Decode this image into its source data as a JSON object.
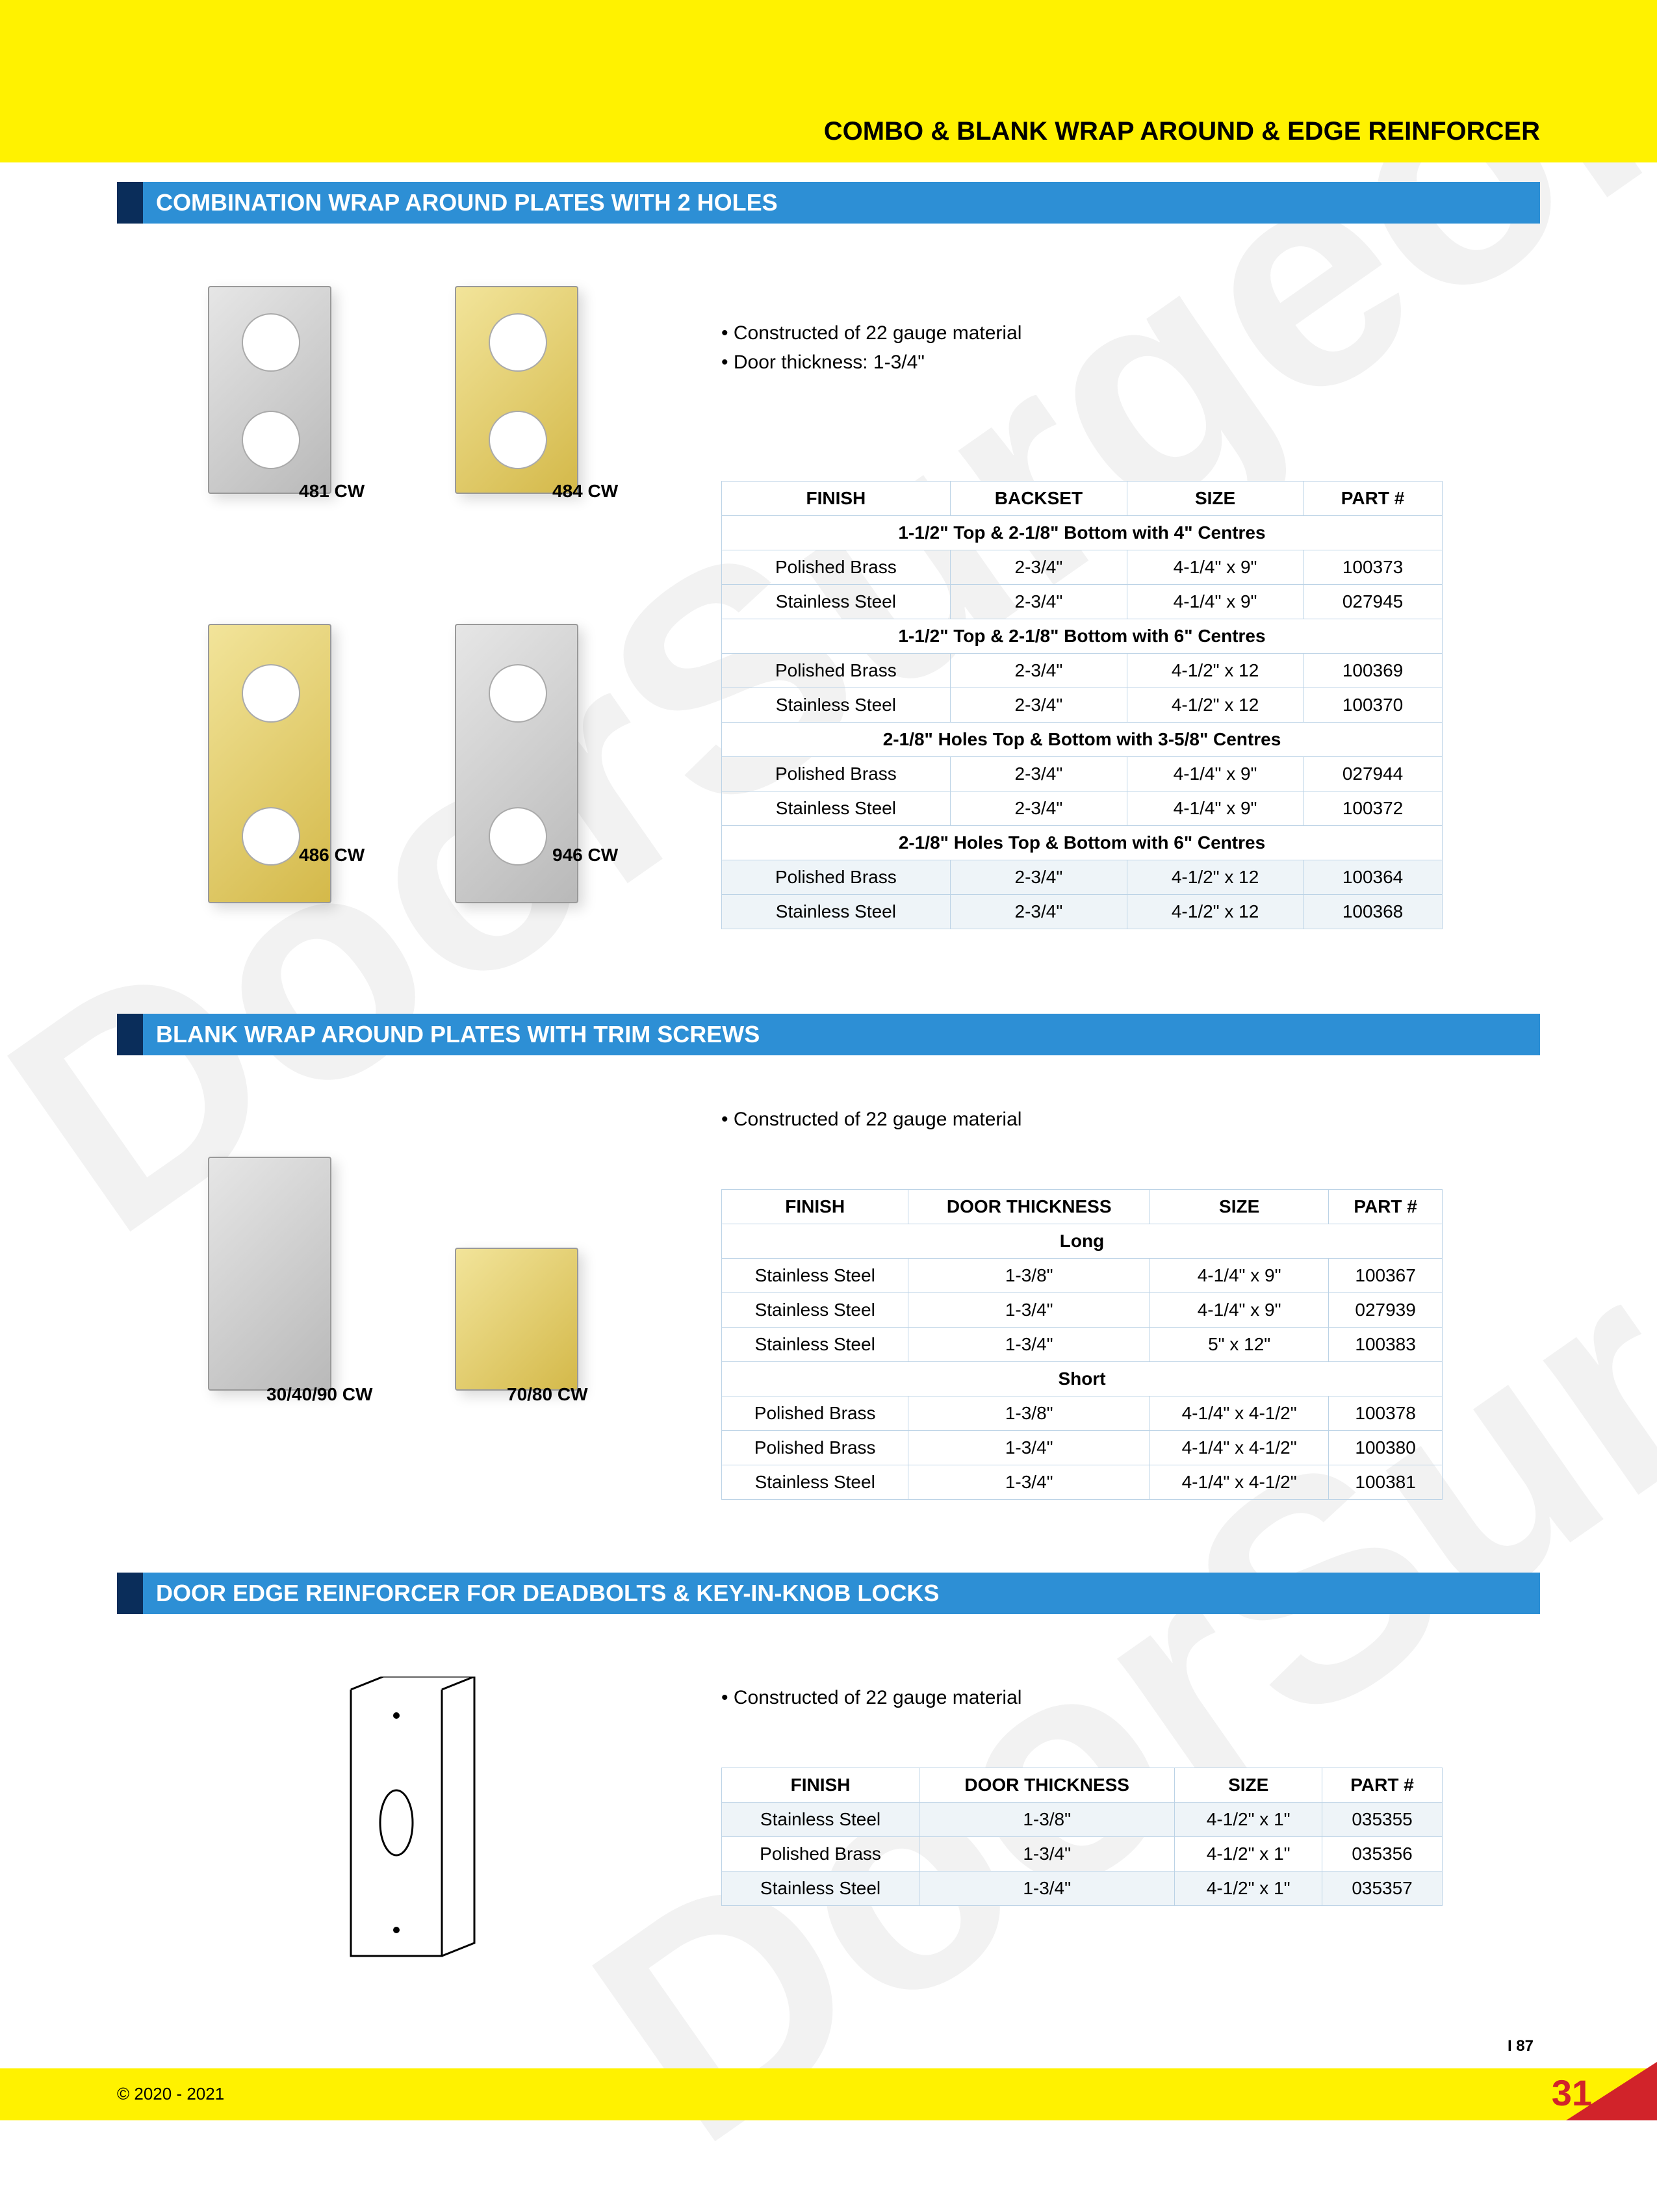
{
  "page": {
    "title": "COMBO & BLANK WRAP AROUND & EDGE REINFORCER",
    "copyright": "© 2020 - 2021",
    "page_number": "31",
    "ref_code": "I 87",
    "watermark": "DoorSurgeon.com",
    "colors": {
      "yellow": "#fff200",
      "blue_bar": "#2d8fd5",
      "dark_blue": "#0a2d5a",
      "table_border": "#bcd3e6",
      "red": "#d1232a"
    }
  },
  "section1": {
    "title": "COMBINATION WRAP AROUND PLATES WITH 2 HOLES",
    "bullets": [
      "• Constructed of 22 gauge material",
      "• Door thickness: 1-3/4\""
    ],
    "products": [
      {
        "label": "481 CW",
        "finish": "steel"
      },
      {
        "label": "484 CW",
        "finish": "brass"
      },
      {
        "label": "486 CW",
        "finish": "brass"
      },
      {
        "label": "946 CW",
        "finish": "steel"
      }
    ],
    "table": {
      "headers": [
        "FINISH",
        "BACKSET",
        "SIZE",
        "PART #"
      ],
      "groups": [
        {
          "subhead": "1-1/2\" Top & 2-1/8\" Bottom with 4\" Centres",
          "rows": [
            [
              "Polished Brass",
              "2-3/4\"",
              "4-1/4\" x 9\"",
              "100373"
            ],
            [
              "Stainless Steel",
              "2-3/4\"",
              "4-1/4\" x 9\"",
              "027945"
            ]
          ]
        },
        {
          "subhead": "1-1/2\" Top & 2-1/8\" Bottom with 6\" Centres",
          "rows": [
            [
              "Polished Brass",
              "2-3/4\"",
              "4-1/2\" x 12",
              "100369"
            ],
            [
              "Stainless Steel",
              "2-3/4\"",
              "4-1/2\" x 12",
              "100370"
            ]
          ]
        },
        {
          "subhead": "2-1/8\" Holes Top & Bottom with 3-5/8\" Centres",
          "rows": [
            [
              "Polished Brass",
              "2-3/4\"",
              "4-1/4\" x 9\"",
              "027944"
            ],
            [
              "Stainless Steel",
              "2-3/4\"",
              "4-1/4\" x 9\"",
              "100372"
            ]
          ]
        },
        {
          "subhead": "2-1/8\" Holes Top & Bottom with 6\" Centres",
          "rows": [
            [
              "Polished Brass",
              "2-3/4\"",
              "4-1/2\" x 12",
              "100364"
            ],
            [
              "Stainless Steel",
              "2-3/4\"",
              "4-1/2\" x 12",
              "100368"
            ]
          ]
        }
      ]
    }
  },
  "section2": {
    "title": "BLANK WRAP AROUND PLATES WITH TRIM SCREWS",
    "bullets": [
      "• Constructed of 22 gauge material"
    ],
    "products": [
      {
        "label": "30/40/90 CW",
        "finish": "steel"
      },
      {
        "label": "70/80 CW",
        "finish": "brass"
      }
    ],
    "table": {
      "headers": [
        "FINISH",
        "DOOR THICKNESS",
        "SIZE",
        "PART #"
      ],
      "groups": [
        {
          "subhead": "Long",
          "rows": [
            [
              "Stainless Steel",
              "1-3/8\"",
              "4-1/4\" x 9\"",
              "100367"
            ],
            [
              "Stainless Steel",
              "1-3/4\"",
              "4-1/4\" x 9\"",
              "027939"
            ],
            [
              "Stainless Steel",
              "1-3/4\"",
              "5\" x 12\"",
              "100383"
            ]
          ]
        },
        {
          "subhead": "Short",
          "rows": [
            [
              "Polished Brass",
              "1-3/8\"",
              "4-1/4\" x 4-1/2\"",
              "100378"
            ],
            [
              "Polished Brass",
              "1-3/4\"",
              "4-1/4\" x 4-1/2\"",
              "100380"
            ],
            [
              "Stainless Steel",
              "1-3/4\"",
              "4-1/4\" x 4-1/2\"",
              "100381"
            ]
          ]
        }
      ]
    }
  },
  "section3": {
    "title": "DOOR EDGE REINFORCER FOR DEADBOLTS & KEY-IN-KNOB LOCKS",
    "bullets": [
      "• Constructed of 22 gauge material"
    ],
    "table": {
      "headers": [
        "FINISH",
        "DOOR THICKNESS",
        "SIZE",
        "PART #"
      ],
      "rows": [
        [
          "Stainless Steel",
          "1-3/8\"",
          "4-1/2\" x 1\"",
          "035355"
        ],
        [
          "Polished Brass",
          "1-3/4\"",
          "4-1/2\" x 1\"",
          "035356"
        ],
        [
          "Stainless Steel",
          "1-3/4\"",
          "4-1/2\" x 1\"",
          "035357"
        ]
      ]
    }
  }
}
